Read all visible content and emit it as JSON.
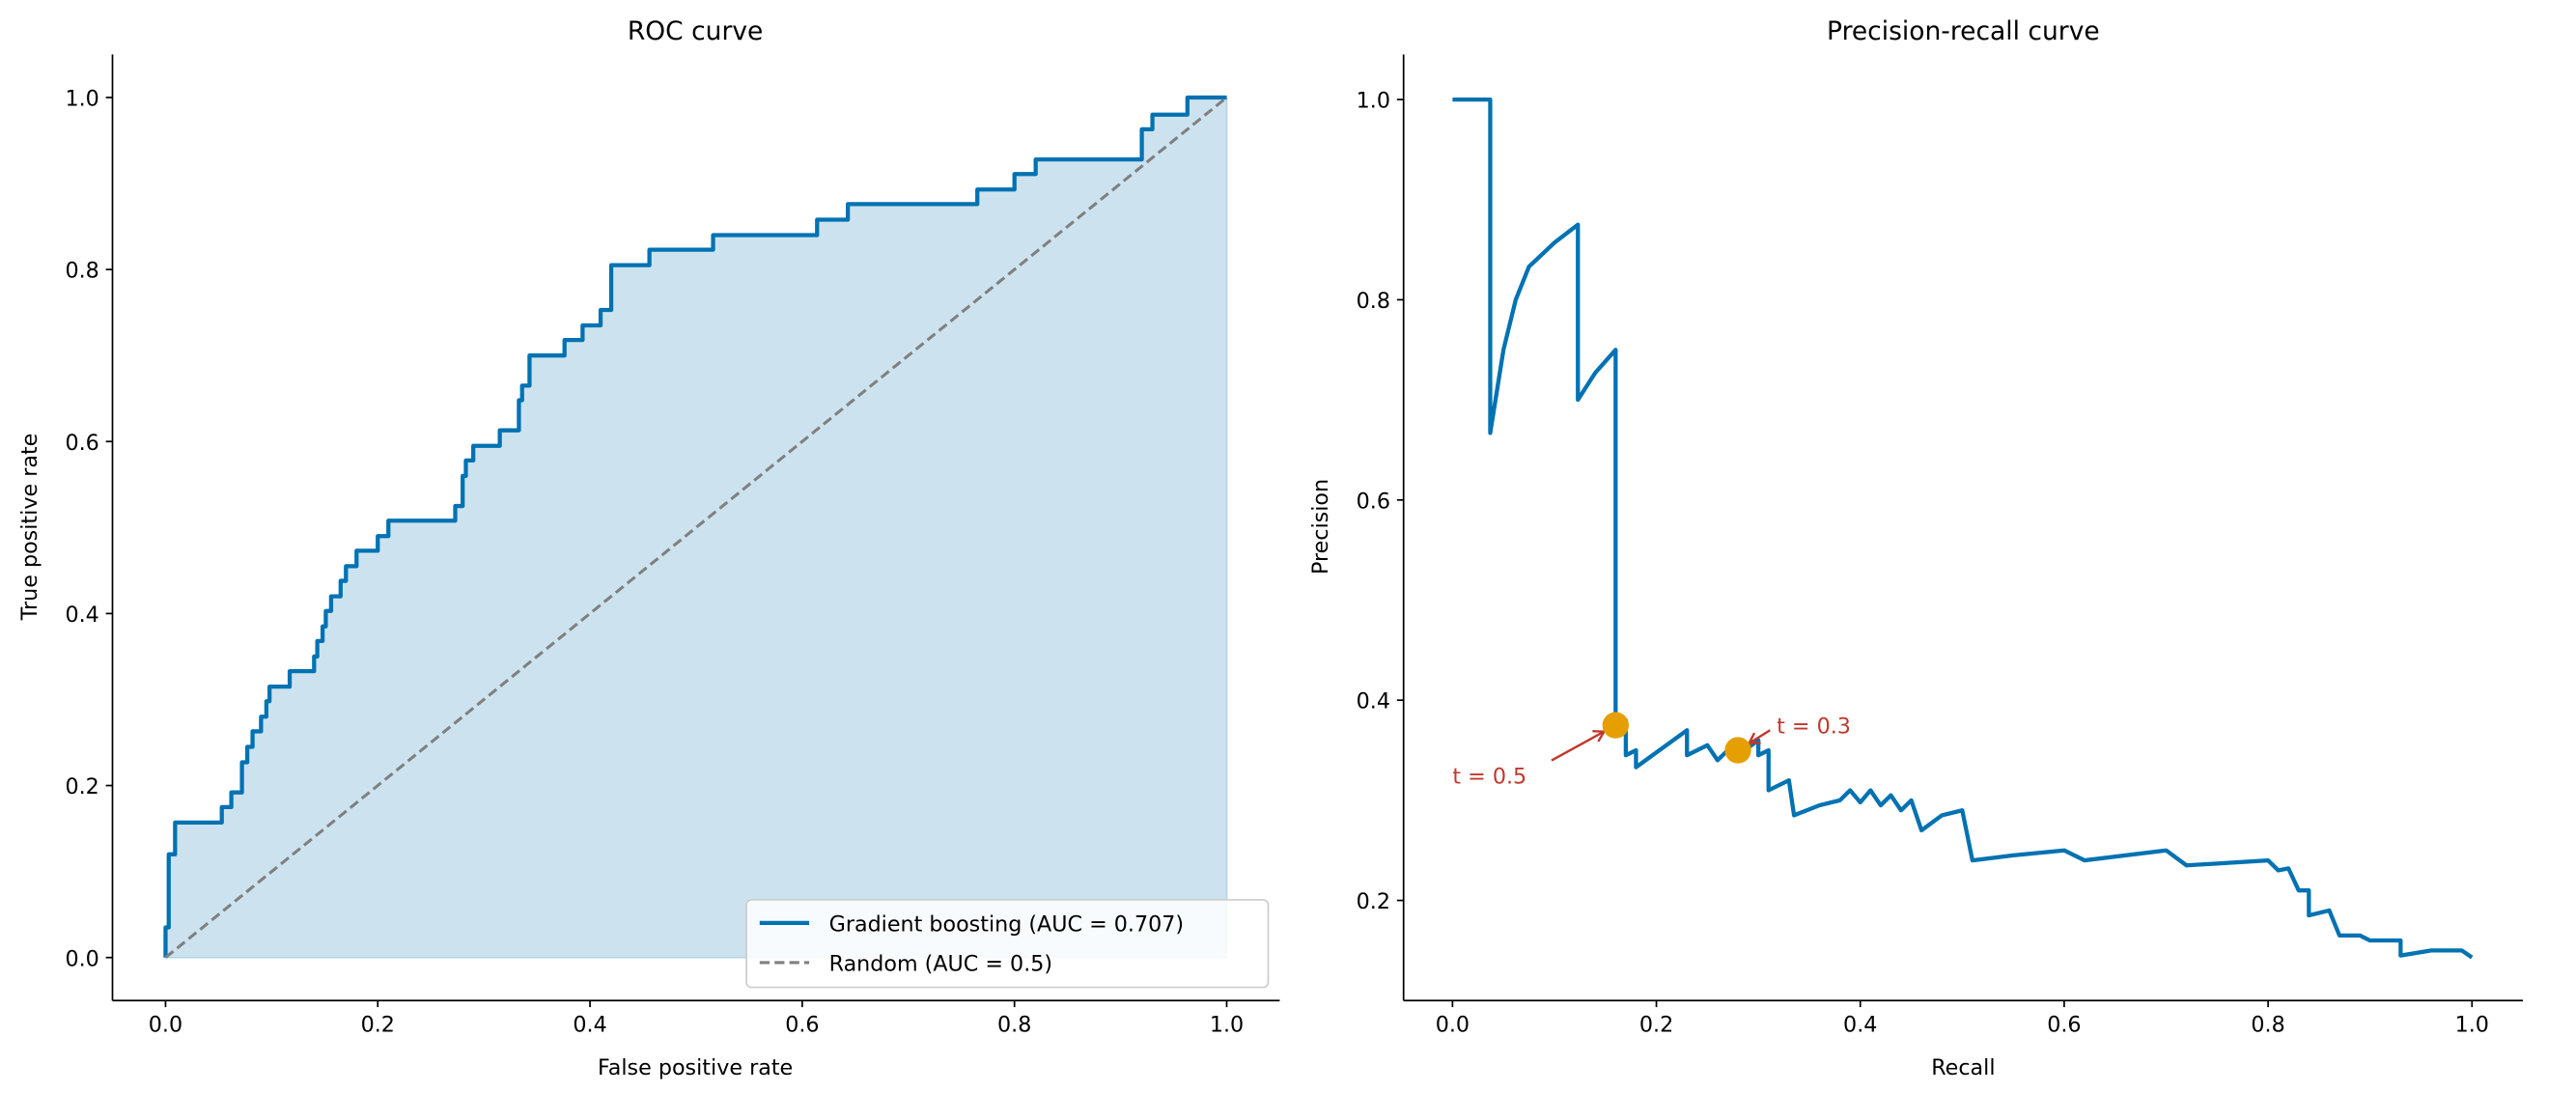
{
  "colors": {
    "curve": "#0072b2",
    "fill": "#cce3ef",
    "random": "#808080",
    "marker": "#e69f00",
    "annotation": "#c0392b"
  },
  "chart_data": [
    {
      "type": "line",
      "title": "ROC curve",
      "xlabel": "False positive rate",
      "ylabel": "True positive rate",
      "xlim": [
        -0.05,
        1.05
      ],
      "ylim": [
        -0.05,
        1.05
      ],
      "xticks": [
        "0.0",
        "0.2",
        "0.4",
        "0.6",
        "0.8",
        "1.0"
      ],
      "yticks": [
        "0.0",
        "0.2",
        "0.4",
        "0.6",
        "0.8",
        "1.0"
      ],
      "grid": false,
      "legend_position": "bottom-right",
      "series": [
        {
          "name": "Gradient boosting (AUC = 0.707)",
          "style": "solid",
          "filled": true,
          "x": [
            0,
            0,
            0.003,
            0.003,
            0.009,
            0.009,
            0.053,
            0.053,
            0.062,
            0.062,
            0.072,
            0.072,
            0.077,
            0.077,
            0.082,
            0.082,
            0.09,
            0.09,
            0.095,
            0.095,
            0.098,
            0.098,
            0.117,
            0.117,
            0.14,
            0.14,
            0.143,
            0.143,
            0.148,
            0.148,
            0.151,
            0.151,
            0.156,
            0.156,
            0.165,
            0.165,
            0.17,
            0.17,
            0.18,
            0.18,
            0.2,
            0.2,
            0.21,
            0.21,
            0.273,
            0.273,
            0.28,
            0.28,
            0.283,
            0.283,
            0.29,
            0.29,
            0.315,
            0.315,
            0.333,
            0.333,
            0.336,
            0.336,
            0.343,
            0.343,
            0.376,
            0.376,
            0.393,
            0.393,
            0.41,
            0.41,
            0.42,
            0.42,
            0.456,
            0.456,
            0.516,
            0.516,
            0.614,
            0.614,
            0.643,
            0.643,
            0.765,
            0.765,
            0.8,
            0.8,
            0.82,
            0.82,
            0.92,
            0.92,
            0.93,
            0.93,
            0.963,
            0.963,
            1
          ],
          "y": [
            0,
            0.035,
            0.035,
            0.12,
            0.12,
            0.157,
            0.157,
            0.175,
            0.175,
            0.192,
            0.192,
            0.227,
            0.227,
            0.245,
            0.245,
            0.263,
            0.263,
            0.28,
            0.28,
            0.298,
            0.298,
            0.315,
            0.315,
            0.333,
            0.333,
            0.35,
            0.35,
            0.368,
            0.368,
            0.385,
            0.385,
            0.403,
            0.403,
            0.42,
            0.42,
            0.438,
            0.438,
            0.455,
            0.455,
            0.473,
            0.473,
            0.49,
            0.49,
            0.508,
            0.508,
            0.525,
            0.525,
            0.56,
            0.56,
            0.578,
            0.578,
            0.595,
            0.595,
            0.613,
            0.613,
            0.648,
            0.648,
            0.665,
            0.665,
            0.7,
            0.7,
            0.718,
            0.718,
            0.735,
            0.735,
            0.753,
            0.753,
            0.805,
            0.805,
            0.823,
            0.823,
            0.84,
            0.84,
            0.858,
            0.858,
            0.876,
            0.876,
            0.893,
            0.893,
            0.911,
            0.911,
            0.928,
            0.928,
            0.963,
            0.963,
            0.98,
            0.98,
            1,
            1
          ]
        },
        {
          "name": "Random (AUC = 0.5)",
          "style": "dashed",
          "x": [
            0,
            1
          ],
          "y": [
            0,
            1
          ]
        }
      ]
    },
    {
      "type": "line",
      "title": "Precision-recall curve",
      "xlabel": "Recall",
      "ylabel": "Precision",
      "xlim": [
        -0.048,
        1.05
      ],
      "ylim": [
        0.1,
        1.045
      ],
      "xticks": [
        "0.0",
        "0.2",
        "0.4",
        "0.6",
        "0.8",
        "1.0"
      ],
      "yticks": [
        "0.2",
        "0.4",
        "0.6",
        "0.8",
        "1.0"
      ],
      "grid": false,
      "series": [
        {
          "style": "solid",
          "x": [
            0,
            0.037,
            0.037,
            0.05,
            0.062,
            0.075,
            0.1,
            0.123,
            0.123,
            0.14,
            0.16,
            0.16,
            0.17,
            0.17,
            0.18,
            0.18,
            0.23,
            0.23,
            0.25,
            0.26,
            0.27,
            0.28,
            0.3,
            0.3,
            0.31,
            0.31,
            0.33,
            0.335,
            0.36,
            0.38,
            0.39,
            0.4,
            0.41,
            0.42,
            0.43,
            0.44,
            0.45,
            0.46,
            0.48,
            0.5,
            0.51,
            0.55,
            0.6,
            0.62,
            0.7,
            0.72,
            0.8,
            0.81,
            0.82,
            0.83,
            0.84,
            0.84,
            0.86,
            0.87,
            0.89,
            0.9,
            0.93,
            0.93,
            0.96,
            0.99,
            1
          ],
          "y": [
            1,
            1,
            0.667,
            0.75,
            0.8,
            0.833,
            0.857,
            0.875,
            0.7,
            0.727,
            0.75,
            0.364,
            0.38,
            0.345,
            0.35,
            0.333,
            0.37,
            0.345,
            0.355,
            0.34,
            0.35,
            0.345,
            0.36,
            0.345,
            0.35,
            0.31,
            0.32,
            0.285,
            0.295,
            0.3,
            0.31,
            0.298,
            0.31,
            0.295,
            0.305,
            0.29,
            0.3,
            0.27,
            0.285,
            0.29,
            0.24,
            0.245,
            0.25,
            0.24,
            0.25,
            0.235,
            0.24,
            0.23,
            0.232,
            0.21,
            0.21,
            0.185,
            0.19,
            0.165,
            0.165,
            0.16,
            0.16,
            0.145,
            0.15,
            0.15,
            0.143
          ]
        }
      ],
      "markers": [
        {
          "label": "t = 0.5",
          "x": 0.16,
          "y": 0.375,
          "text_x": 0.0,
          "text_y": 0.325
        },
        {
          "label": "t = 0.3",
          "x": 0.28,
          "y": 0.35,
          "text_x": 0.318,
          "text_y": 0.375
        }
      ]
    }
  ]
}
